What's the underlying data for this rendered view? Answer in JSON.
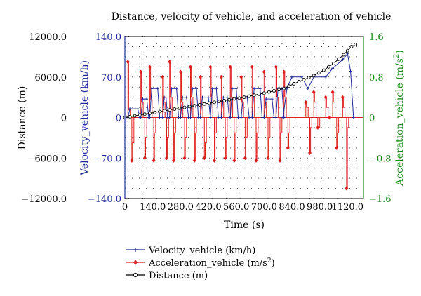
{
  "chart_data": {
    "type": "line",
    "title": "Distance, velocity of vehicle, and acceleration of vehicle",
    "xlabel": "Time (s)",
    "xlim": [
      0,
      1200
    ],
    "xticks": [
      0,
      140,
      280,
      420,
      560,
      700,
      840,
      980,
      1120
    ],
    "xtick_labels": [
      "0",
      "140.0",
      "280.0",
      "420.0",
      "560.0",
      "700.0",
      "840.0",
      "980.0",
      "1120.0"
    ],
    "axes": {
      "distance": {
        "label": "Distance (m)",
        "lim": [
          -12000,
          12000
        ],
        "ticks": [
          12000,
          6000,
          0,
          -6000,
          -12000
        ],
        "tick_labels": [
          "12000.0",
          "6000.0",
          "0",
          "−6000.0",
          "−12000.0"
        ],
        "color": "#000000"
      },
      "velocity": {
        "label": "Velocity_vehicle (km/h)",
        "lim": [
          -140,
          140
        ],
        "ticks": [
          140,
          70,
          0,
          -70,
          -140
        ],
        "tick_labels": [
          "140.0",
          "70.0",
          "0",
          "−70.0",
          "−140.0"
        ],
        "color": "#1f2a9a"
      },
      "acceleration": {
        "label_main": "Acceleration_vehicle (m/s",
        "label_sup": "2",
        "label_end": ")",
        "lim": [
          -1.6,
          1.6
        ],
        "ticks": [
          1.6,
          0.8,
          0,
          -0.8,
          -1.6
        ],
        "tick_labels": [
          "1.6",
          "0.8",
          "0",
          "−0.8",
          "−1.6"
        ],
        "color": "#1a8a1a"
      }
    },
    "grid": "dotted",
    "legend_position": "bottom",
    "legend": [
      {
        "text": "Velocity_vehicle (km/h)",
        "sup": "",
        "tail": "",
        "color": "#1f2a9a",
        "marker": "plus"
      },
      {
        "text": "Acceleration_vehicle (m/s",
        "sup": "2",
        "tail": ")",
        "color": "#e02020",
        "marker": "diamond"
      },
      {
        "text": "Distance (m)",
        "sup": "",
        "tail": "",
        "color": "#000000",
        "marker": "circle"
      }
    ],
    "series": [
      {
        "name": "Velocity_vehicle (km/h)",
        "axis": "velocity",
        "color": "#1f2a9a",
        "marker": "plus",
        "trips": [
          {
            "start": 15,
            "end": 75,
            "peak": 15
          },
          {
            "start": 80,
            "end": 120,
            "peak": 32
          },
          {
            "start": 125,
            "end": 175,
            "peak": 50
          },
          {
            "start": 190,
            "end": 215,
            "peak": 35
          },
          {
            "start": 225,
            "end": 270,
            "peak": 50
          },
          {
            "start": 280,
            "end": 320,
            "peak": 35
          },
          {
            "start": 330,
            "end": 370,
            "peak": 50
          },
          {
            "start": 380,
            "end": 430,
            "peak": 35
          },
          {
            "start": 430,
            "end": 470,
            "peak": 50
          },
          {
            "start": 485,
            "end": 525,
            "peak": 35
          },
          {
            "start": 530,
            "end": 570,
            "peak": 50
          },
          {
            "start": 585,
            "end": 625,
            "peak": 35
          },
          {
            "start": 640,
            "end": 690,
            "peak": 50
          },
          {
            "start": 700,
            "end": 750,
            "peak": 32
          },
          {
            "start": 760,
            "end": 800,
            "peak": 50
          },
          {
            "start": 795,
            "end": 1150,
            "profile": [
              [
                795,
                0
              ],
              [
                815,
                50
              ],
              [
                840,
                70
              ],
              [
                890,
                70
              ],
              [
                920,
                50
              ],
              [
                950,
                70
              ],
              [
                1010,
                70
              ],
              [
                1045,
                85
              ],
              [
                1095,
                100
              ],
              [
                1120,
                110
              ],
              [
                1135,
                80
              ],
              [
                1150,
                0
              ]
            ]
          }
        ]
      },
      {
        "name": "Acceleration_vehicle (m/s²)",
        "axis": "acceleration",
        "color": "#e02020",
        "marker": "diamond",
        "events": [
          [
            15,
            1.1,
            0.15,
            -0.85,
            0.5
          ],
          [
            80,
            0.9,
            0.3,
            -0.8,
            0.4
          ],
          [
            125,
            1.0,
            0.35,
            -0.85,
            0.3
          ],
          [
            190,
            0.8,
            0.3,
            -0.8,
            0.4
          ],
          [
            225,
            1.1,
            0.4,
            -0.85,
            0.3
          ],
          [
            280,
            0.9,
            0.3,
            -0.8,
            0.4
          ],
          [
            330,
            1.0,
            0.4,
            -0.85,
            0.3
          ],
          [
            380,
            0.8,
            0.3,
            -0.8,
            0.5
          ],
          [
            430,
            1.0,
            0.4,
            -0.85,
            0.3
          ],
          [
            485,
            0.8,
            0.3,
            -0.8,
            0.4
          ],
          [
            530,
            1.0,
            0.4,
            -0.85,
            0.3
          ],
          [
            585,
            0.8,
            0.3,
            -0.8,
            0.4
          ],
          [
            640,
            1.0,
            0.4,
            -0.85,
            0.3
          ],
          [
            700,
            0.9,
            0.3,
            -0.8,
            0.4
          ],
          [
            760,
            1.0,
            0.4,
            -0.85,
            0.3
          ],
          [
            800,
            0.9,
            0.4,
            -0.6,
            0.3
          ],
          [
            910,
            0.3,
            0.2,
            -0.7,
            0.2
          ],
          [
            950,
            0.5,
            0.3,
            -0.2,
            0.2
          ],
          [
            1010,
            0.4,
            0.2,
            0,
            0
          ],
          [
            1045,
            0.5,
            0.3,
            -0.6,
            0.3
          ],
          [
            1095,
            0.4,
            0.2,
            -1.4,
            0.2
          ]
        ]
      },
      {
        "name": "Distance (m)",
        "axis": "distance",
        "color": "#000000",
        "marker": "circle",
        "x": [
          0,
          100,
          200,
          300,
          400,
          500,
          600,
          700,
          800,
          850,
          900,
          950,
          1000,
          1050,
          1100,
          1140,
          1160
        ],
        "values": [
          0,
          500,
          1000,
          1500,
          2000,
          2500,
          3000,
          3600,
          4300,
          5000,
          5600,
          6200,
          7000,
          8000,
          9300,
          10500,
          10800
        ]
      }
    ]
  }
}
